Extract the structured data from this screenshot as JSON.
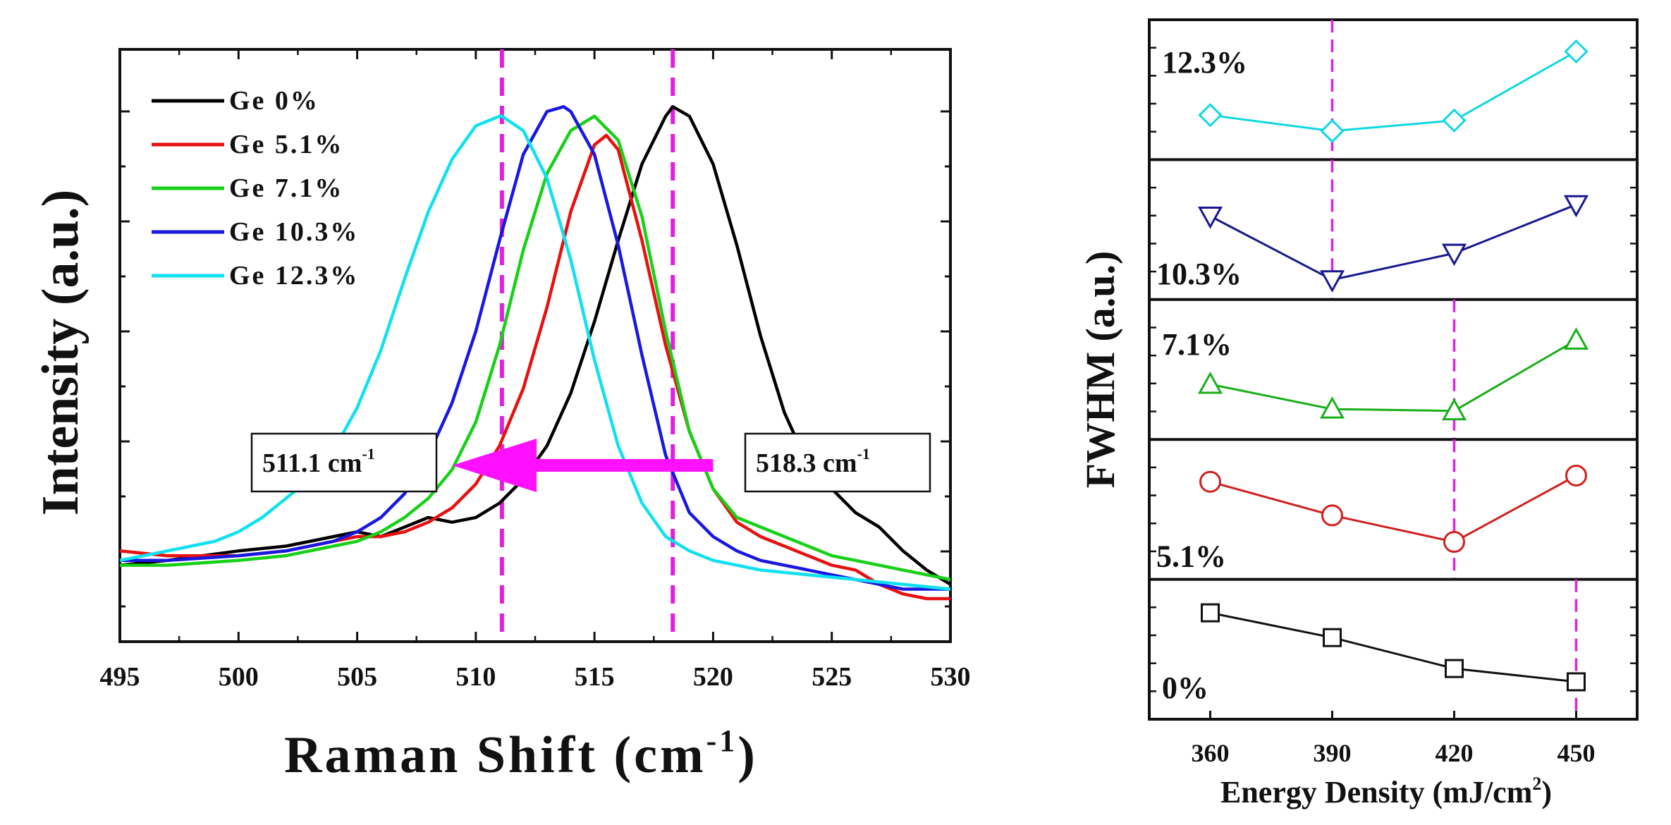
{
  "chart_data": [
    {
      "type": "line",
      "xlabel": "Raman Shift (cm",
      "xlabel_sup": "-1",
      "xlabel_close": ")",
      "ylabel": "Intensity (a.u.)",
      "xlim": [
        495,
        530
      ],
      "ylim": [
        0,
        1.1
      ],
      "xticks": [
        "495",
        "500",
        "505",
        "510",
        "515",
        "520",
        "525",
        "530"
      ],
      "series": [
        {
          "name": "Ge 0%",
          "color": "#000000",
          "x": [
            495,
            497,
            500,
            502,
            504,
            505,
            506,
            507,
            508,
            509,
            510,
            511,
            512,
            513,
            514,
            515,
            516,
            517,
            518,
            518.3,
            519,
            520,
            521,
            522,
            523,
            524,
            525,
            526,
            527,
            528,
            529,
            530
          ],
          "y": [
            0.04,
            0.05,
            0.07,
            0.08,
            0.1,
            0.11,
            0.1,
            0.12,
            0.14,
            0.13,
            0.14,
            0.17,
            0.22,
            0.29,
            0.4,
            0.55,
            0.72,
            0.88,
            0.98,
            1.0,
            0.98,
            0.88,
            0.71,
            0.52,
            0.36,
            0.25,
            0.2,
            0.15,
            0.12,
            0.07,
            0.03,
            0.0
          ]
        },
        {
          "name": "Ge 5.1%",
          "color": "#e81010",
          "x": [
            495,
            497,
            500,
            502,
            504,
            505,
            506,
            507,
            508,
            509,
            510,
            511,
            512,
            513,
            514,
            515,
            515.5,
            516,
            517,
            518,
            519,
            520,
            521,
            522,
            523,
            524,
            525,
            526,
            527,
            528,
            529,
            530
          ],
          "y": [
            0.07,
            0.06,
            0.06,
            0.07,
            0.09,
            0.1,
            0.1,
            0.11,
            0.13,
            0.16,
            0.21,
            0.29,
            0.41,
            0.58,
            0.78,
            0.92,
            0.94,
            0.91,
            0.72,
            0.5,
            0.32,
            0.2,
            0.13,
            0.1,
            0.08,
            0.06,
            0.04,
            0.03,
            0.0,
            -0.02,
            -0.03,
            -0.03
          ]
        },
        {
          "name": "Ge 7.1%",
          "color": "#18d018",
          "x": [
            495,
            497,
            500,
            502,
            504,
            505,
            506,
            507,
            508,
            509,
            510,
            511,
            512,
            513,
            514,
            515,
            516,
            517,
            518,
            519,
            520,
            521,
            522,
            523,
            524,
            525,
            526,
            527,
            528,
            529,
            530
          ],
          "y": [
            0.04,
            0.04,
            0.05,
            0.06,
            0.08,
            0.09,
            0.11,
            0.14,
            0.18,
            0.24,
            0.34,
            0.5,
            0.7,
            0.86,
            0.95,
            0.98,
            0.93,
            0.77,
            0.53,
            0.32,
            0.2,
            0.14,
            0.12,
            0.1,
            0.08,
            0.06,
            0.05,
            0.04,
            0.03,
            0.02,
            0.01
          ]
        },
        {
          "name": "Ge 10.3%",
          "color": "#1818e0",
          "x": [
            495,
            497,
            500,
            502,
            504,
            505,
            506,
            507,
            508,
            509,
            510,
            511,
            512,
            513,
            513.7,
            514,
            515,
            516,
            517,
            518,
            519,
            520,
            521,
            522,
            523,
            524,
            525,
            526,
            527,
            528,
            529,
            530
          ],
          "y": [
            0.05,
            0.05,
            0.06,
            0.07,
            0.09,
            0.11,
            0.14,
            0.19,
            0.27,
            0.38,
            0.53,
            0.72,
            0.9,
            0.99,
            1.0,
            0.99,
            0.9,
            0.71,
            0.48,
            0.27,
            0.15,
            0.1,
            0.07,
            0.05,
            0.04,
            0.03,
            0.02,
            0.01,
            0.0,
            -0.01,
            -0.01,
            -0.01
          ]
        },
        {
          "name": "Ge 12.3%",
          "color": "#10e0f0",
          "x": [
            495,
            497,
            499,
            500,
            501,
            502,
            503,
            504,
            505,
            506,
            507,
            508,
            509,
            510,
            511,
            511.1,
            512,
            513,
            514,
            515,
            516,
            517,
            518,
            519,
            520,
            521,
            522,
            524,
            526,
            528,
            530
          ],
          "y": [
            0.05,
            0.07,
            0.09,
            0.11,
            0.14,
            0.18,
            0.22,
            0.28,
            0.37,
            0.49,
            0.64,
            0.78,
            0.89,
            0.96,
            0.98,
            0.98,
            0.95,
            0.85,
            0.68,
            0.47,
            0.29,
            0.17,
            0.1,
            0.07,
            0.05,
            0.04,
            0.03,
            0.02,
            0.01,
            0.0,
            -0.01
          ]
        }
      ],
      "annotations": {
        "left_label": "511.1 cm",
        "left_sup": "-1",
        "right_label": "518.3 cm",
        "right_sup": "-1",
        "vlines": [
          511.1,
          518.3
        ],
        "arrow": {
          "from": 520,
          "to": 509
        },
        "vline_color": "#e020e0",
        "arrow_color": "#ff10ff"
      }
    },
    {
      "type": "line",
      "xlabel": "Energy Density (mJ/cm",
      "xlabel_sup": "2",
      "xlabel_close": ")",
      "ylabel": "FWHM (a.u.)",
      "x": [
        360,
        390,
        420,
        450
      ],
      "xticks": [
        "360",
        "390",
        "420",
        "450"
      ],
      "xlim": [
        345,
        465
      ],
      "panels": [
        {
          "label": "12.3%",
          "label_color": "#b020c0",
          "color": "#10d8e0",
          "marker": "diamond",
          "values": [
            0.28,
            0.1,
            0.22,
            1.0
          ],
          "vline": 390
        },
        {
          "label": "10.3%",
          "label_color": "#1818a0",
          "color": "#181890",
          "marker": "triangle-down",
          "values": [
            0.72,
            0.0,
            0.3,
            0.85
          ],
          "vline": 390
        },
        {
          "label": "7.1%",
          "label_color": "#108a10",
          "color": "#18b018",
          "marker": "triangle-up",
          "values": [
            0.4,
            0.12,
            0.1,
            0.9
          ],
          "vline": 420
        },
        {
          "label": "5.1%",
          "label_color": "#d01818",
          "color": "#d02020",
          "marker": "circle",
          "values": [
            0.88,
            0.5,
            0.2,
            0.95
          ],
          "vline": 420
        },
        {
          "label": "0%",
          "label_color": "#111111",
          "color": "#111111",
          "marker": "square",
          "values": [
            0.98,
            0.7,
            0.35,
            0.2
          ],
          "vline": 450
        }
      ],
      "vline_color": "#e020e0"
    }
  ]
}
